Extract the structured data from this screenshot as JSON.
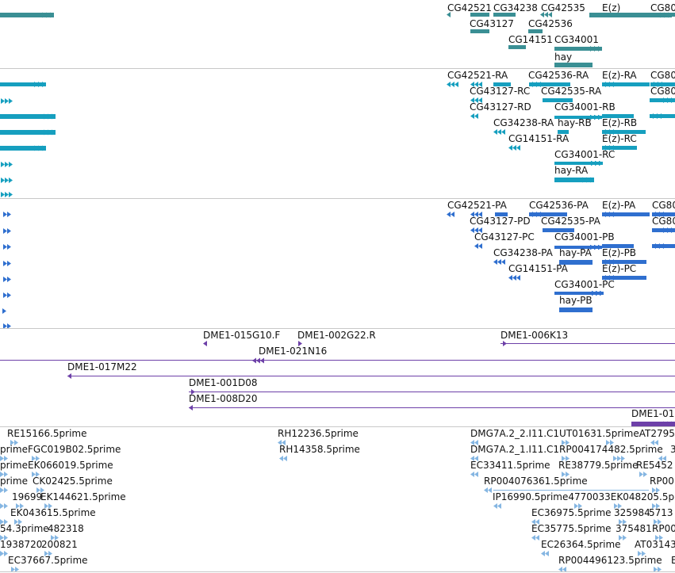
{
  "colors": {
    "gene": "#3a8f94",
    "transcript": "#169fbf",
    "protein": "#2f6fcf",
    "clone": "#6d40a8",
    "est": "#85b6e2",
    "divider": "#c8c8c8",
    "label": "#111111"
  },
  "tracks": {
    "genes": {
      "labels": [
        "CG42521",
        "CG34238",
        "CG42535",
        "E(z)",
        "CG80",
        "CG43127",
        "CG42536",
        "CG14151",
        "CG34001",
        "hay"
      ]
    },
    "transcripts": {
      "labels": [
        "CG42521-RA",
        "CG42536-RA",
        "E(z)-RA",
        "CG80",
        "CG43127-RC",
        "CG42535-RA",
        "CG80",
        "CG43127-RD",
        "CG34001-RB",
        "CG34238-RA",
        "hay-RB",
        "E(z)-RB",
        "CG14151-RA",
        "E(z)-RC",
        "CG34001-RC",
        "hay-RA"
      ]
    },
    "proteins": {
      "labels": [
        "CG42521-PA",
        "CG42536-PA",
        "E(z)-PA",
        "CG80",
        "CG43127-PD",
        "CG42535-PA",
        "CG80",
        "CG43127-PC",
        "CG34001-PB",
        "CG34238-PA",
        "hay-PA",
        "E(z)-PB",
        "CG14151-PA",
        "E(z)-PC",
        "CG34001-PC",
        "hay-PB"
      ]
    },
    "clones": {
      "labels": [
        "DME1-015G10.F",
        "DME1-002G22.R",
        "DME1-006K13",
        "DME1-021N16",
        "DME1-017M22",
        "DME1-001D08",
        "DME1-008D20",
        "DME1-01"
      ]
    },
    "ests": {
      "labels": [
        "RE15166.5prime",
        "RH12236.5prime",
        "DMG7A.2_2.I11.C1UT01631.5primeAT2795",
        "prime",
        "FGC019B02.5prime",
        "RH14358.5prime",
        "DMG7A.2_1.I11.C1RP004174482.5prime",
        "3",
        "prime",
        "EK066019.5prime",
        "EC33411.5prime",
        "RE38779.5prime",
        "RE5452",
        "prime",
        "CK02425.5prime",
        "RP004076361.5prime",
        "RP00",
        "19699",
        "EK144621.5prime",
        "IP16990.5prime4770033EK048205.5p",
        "EK043615.5prime",
        "EC36975.5prime",
        "325984",
        "5713",
        "54.3prime",
        "482318",
        "EC35775.5prime",
        "375481",
        "RP00",
        "1938720",
        "200821",
        "EC26364.5prime",
        "AT03143",
        "EC37667.5prime",
        "RP004496123.5prime",
        "E"
      ]
    }
  }
}
